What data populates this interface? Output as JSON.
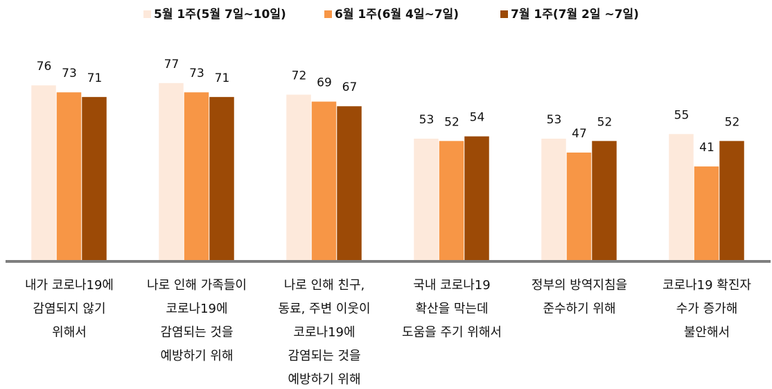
{
  "chart_data": {
    "type": "bar",
    "categories": [
      "내가 코로나19에\n감염되지 않기\n위해서",
      "나로 인해 가족들이\n코로나19에\n감염되는 것을\n예방하기 위해",
      "나로 인해 친구,\n동료, 주변 이웃이\n코로나19에\n감염되는 것을\n예방하기 위해",
      "국내 코로나19\n확산을 막는데\n도움을 주기 위해서",
      "정부의 방역지침을\n준수하기 위해",
      "코로나19 확진자\n수가 증가해\n불안해서"
    ],
    "series": [
      {
        "name": "5월 1주(5월 7일~10일)",
        "color": "#fde9db",
        "values": [
          76,
          77,
          72,
          53,
          53,
          55
        ]
      },
      {
        "name": "6월 1주(6월 4일~7일)",
        "color": "#f79646",
        "values": [
          73,
          73,
          69,
          52,
          47,
          41
        ]
      },
      {
        "name": "7월 1주(7월 2일 ~7일)",
        "color": "#9c4a06",
        "values": [
          71,
          71,
          67,
          54,
          52,
          52
        ]
      }
    ],
    "ylim": [
      0,
      100
    ],
    "legend": "top"
  }
}
